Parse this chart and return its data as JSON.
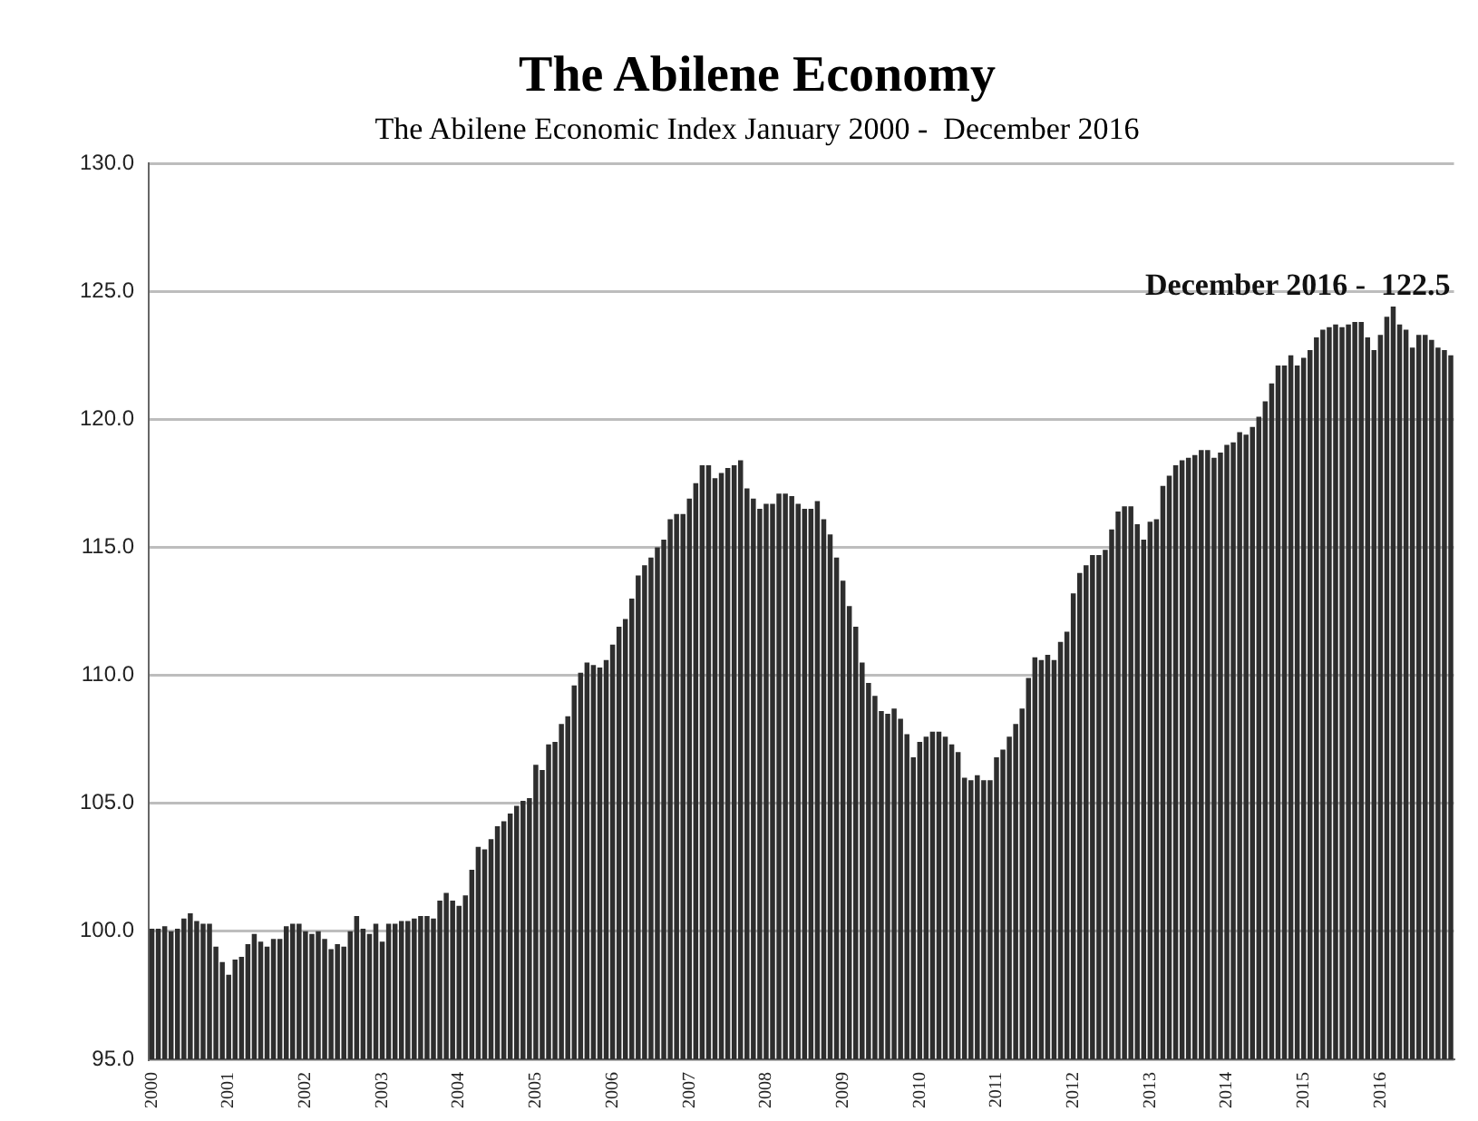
{
  "chart_data": {
    "type": "bar",
    "title": "The Abilene Economy",
    "subtitle": "The Abilene Economic Index January 2000 -  December 2016",
    "categories": [
      "2000",
      null,
      null,
      null,
      null,
      null,
      null,
      null,
      null,
      null,
      null,
      null,
      "2001",
      null,
      null,
      null,
      null,
      null,
      null,
      null,
      null,
      null,
      null,
      null,
      "2002",
      null,
      null,
      null,
      null,
      null,
      null,
      null,
      null,
      null,
      null,
      null,
      "2003",
      null,
      null,
      null,
      null,
      null,
      null,
      null,
      null,
      null,
      null,
      null,
      "2004",
      null,
      null,
      null,
      null,
      null,
      null,
      null,
      null,
      null,
      null,
      null,
      "2005",
      null,
      null,
      null,
      null,
      null,
      null,
      null,
      null,
      null,
      null,
      null,
      "2006",
      null,
      null,
      null,
      null,
      null,
      null,
      null,
      null,
      null,
      null,
      null,
      "2007",
      null,
      null,
      null,
      null,
      null,
      null,
      null,
      null,
      null,
      null,
      null,
      "2008",
      null,
      null,
      null,
      null,
      null,
      null,
      null,
      null,
      null,
      null,
      null,
      "2009",
      null,
      null,
      null,
      null,
      null,
      null,
      null,
      null,
      null,
      null,
      null,
      "2010",
      null,
      null,
      null,
      null,
      null,
      null,
      null,
      null,
      null,
      null,
      null,
      "2011",
      null,
      null,
      null,
      null,
      null,
      null,
      null,
      null,
      null,
      null,
      null,
      "2012",
      null,
      null,
      null,
      null,
      null,
      null,
      null,
      null,
      null,
      null,
      null,
      "2013",
      null,
      null,
      null,
      null,
      null,
      null,
      null,
      null,
      null,
      null,
      null,
      "2014",
      null,
      null,
      null,
      null,
      null,
      null,
      null,
      null,
      null,
      null,
      null,
      "2015",
      null,
      null,
      null,
      null,
      null,
      null,
      null,
      null,
      null,
      null,
      null,
      "2016",
      null,
      null,
      null,
      null,
      null,
      null,
      null,
      null,
      null,
      null,
      null
    ],
    "values": [
      100.1,
      100.1,
      100.2,
      100.0,
      100.1,
      100.5,
      100.7,
      100.4,
      100.3,
      100.3,
      99.4,
      98.8,
      98.3,
      98.9,
      99.0,
      99.5,
      99.9,
      99.6,
      99.4,
      99.7,
      99.7,
      100.2,
      100.3,
      100.3,
      100.0,
      99.9,
      100.0,
      99.7,
      99.3,
      99.5,
      99.4,
      100.0,
      100.6,
      100.1,
      99.9,
      100.3,
      99.6,
      100.3,
      100.3,
      100.4,
      100.4,
      100.5,
      100.6,
      100.6,
      100.5,
      101.2,
      101.5,
      101.2,
      101.0,
      101.4,
      102.4,
      103.3,
      103.2,
      103.6,
      104.1,
      104.3,
      104.6,
      104.9,
      105.1,
      105.2,
      106.5,
      106.3,
      107.3,
      107.4,
      108.1,
      108.4,
      109.6,
      110.1,
      110.5,
      110.4,
      110.3,
      110.6,
      111.2,
      111.9,
      112.2,
      113.0,
      113.9,
      114.3,
      114.6,
      115.0,
      115.3,
      116.1,
      116.3,
      116.3,
      116.9,
      117.5,
      118.2,
      118.2,
      117.7,
      117.9,
      118.1,
      118.2,
      118.4,
      117.3,
      116.9,
      116.5,
      116.7,
      116.7,
      117.1,
      117.1,
      117.0,
      116.7,
      116.5,
      116.5,
      116.8,
      116.1,
      115.5,
      114.6,
      113.7,
      112.7,
      111.9,
      110.5,
      109.7,
      109.2,
      108.6,
      108.5,
      108.7,
      108.3,
      107.7,
      106.8,
      107.4,
      107.6,
      107.8,
      107.8,
      107.6,
      107.3,
      107.0,
      106.0,
      105.9,
      106.1,
      105.9,
      105.9,
      106.8,
      107.1,
      107.6,
      108.1,
      108.7,
      109.9,
      110.7,
      110.6,
      110.8,
      110.6,
      111.3,
      111.7,
      113.2,
      114.0,
      114.3,
      114.7,
      114.7,
      114.9,
      115.7,
      116.4,
      116.6,
      116.6,
      115.9,
      115.3,
      116.0,
      116.1,
      117.4,
      117.8,
      118.2,
      118.4,
      118.5,
      118.6,
      118.8,
      118.8,
      118.5,
      118.7,
      119.0,
      119.1,
      119.5,
      119.4,
      119.7,
      120.1,
      120.7,
      121.4,
      122.1,
      122.1,
      122.5,
      122.1,
      122.4,
      122.7,
      123.2,
      123.5,
      123.6,
      123.7,
      123.6,
      123.7,
      123.8,
      123.8,
      123.2,
      122.7,
      123.3,
      124.0,
      124.4,
      123.7,
      123.5,
      122.8,
      123.3,
      123.3,
      123.1,
      122.8,
      122.7,
      122.5
    ],
    "color": "#2e2e2e",
    "ylim": [
      95,
      130
    ],
    "yticks": [
      {
        "value": 95,
        "label": "95.0"
      },
      {
        "value": 100,
        "label": "100.0"
      },
      {
        "value": 105,
        "label": "105.0"
      },
      {
        "value": 110,
        "label": "110.0"
      },
      {
        "value": 115,
        "label": "115.0"
      },
      {
        "value": 120,
        "label": "120.0"
      },
      {
        "value": 125,
        "label": "125.0"
      },
      {
        "value": 130,
        "label": "130.0"
      }
    ],
    "grid": "y",
    "legend": false,
    "annotations": [
      "December 2016 -  122.5"
    ]
  }
}
